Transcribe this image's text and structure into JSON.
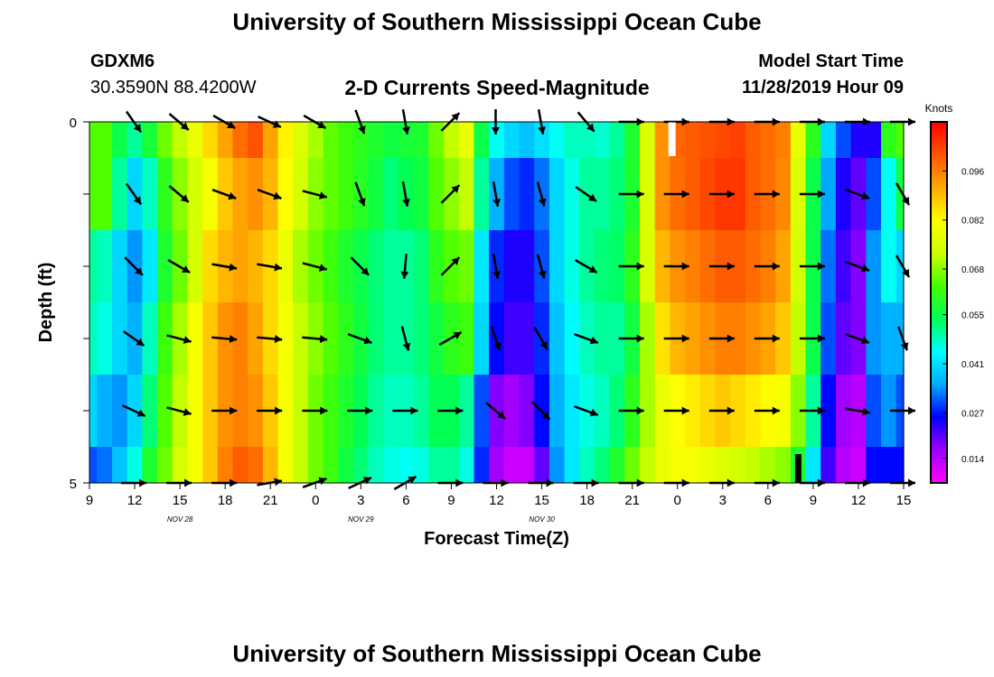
{
  "header": {
    "title": "University of Southern Mississippi Ocean Cube",
    "station": "GDXM6",
    "location": "30.3590N 88.4200W",
    "plot_title": "2-D Currents Speed-Magnitude",
    "model_label": "Model Start Time",
    "model_time": "11/28/2019 Hour 09"
  },
  "footer": {
    "title": "University of Southern Mississippi Ocean Cube"
  },
  "chart_data": {
    "type": "heatmap",
    "title": "2-D Currents Speed-Magnitude",
    "xlabel": "Forecast Time(Z)",
    "ylabel": "Depth (ft)",
    "x_tick_labels": [
      "9",
      "12",
      "15",
      "18",
      "21",
      "0",
      "3",
      "6",
      "9",
      "12",
      "15",
      "18",
      "21",
      "0",
      "3",
      "6",
      "9",
      "12",
      "15"
    ],
    "x_date_labels": [
      {
        "label": "NOV 28",
        "after_tick": 4
      },
      {
        "label": "NOV 29",
        "after_tick": 12
      },
      {
        "label": "NOV 30",
        "after_tick": 20
      }
    ],
    "x_hours_range": [
      0,
      54
    ],
    "y_tick_labels": [
      "0",
      "5"
    ],
    "ylim": [
      0,
      5
    ],
    "y_minor_ticks": 6,
    "colorbar": {
      "title": "Knots",
      "tick_labels": [
        "0.096",
        "0.082",
        "0.068",
        "0.055",
        "0.041",
        "0.027",
        "0.014"
      ],
      "tick_values": [
        0.096,
        0.082,
        0.068,
        0.055,
        0.041,
        0.027,
        0.014
      ],
      "range": [
        0.007,
        0.11
      ],
      "colors": [
        "#ff00ff",
        "#a000ff",
        "#0000ff",
        "#00aaff",
        "#00ffff",
        "#00ff55",
        "#44ff00",
        "#ccff00",
        "#ffff00",
        "#ffaa00",
        "#ff5500",
        "#ff0000"
      ]
    },
    "grid": false,
    "row_boundaries_ft": [
      0,
      0.5,
      1.5,
      2.5,
      3.5,
      4.5,
      5.0
    ],
    "hours": [
      0,
      1,
      2,
      3,
      4,
      5,
      6,
      7,
      8,
      9,
      10,
      11,
      12,
      13,
      14,
      15,
      16,
      17,
      18,
      19,
      20,
      21,
      22,
      23,
      24,
      25,
      26,
      27,
      28,
      29,
      30,
      31,
      32,
      33,
      34,
      35,
      36,
      37,
      38,
      39,
      40,
      41,
      42,
      43,
      44,
      45,
      46,
      47,
      48,
      49,
      50,
      51,
      52,
      53,
      54
    ],
    "speed_by_row": [
      [
        0.064,
        0.064,
        0.055,
        0.05,
        0.057,
        0.066,
        0.072,
        0.078,
        0.086,
        0.092,
        0.098,
        0.101,
        0.092,
        0.083,
        0.075,
        0.07,
        0.065,
        0.062,
        0.06,
        0.058,
        0.056,
        0.057,
        0.058,
        0.066,
        0.072,
        0.078,
        0.055,
        0.045,
        0.04,
        0.038,
        0.041,
        0.045,
        0.048,
        0.048,
        0.047,
        0.05,
        0.058,
        0.075,
        0.094,
        0.099,
        0.1,
        0.101,
        0.102,
        0.103,
        0.1,
        0.098,
        0.096,
        0.078,
        0.06,
        0.04,
        0.03,
        0.024,
        0.024,
        0.06,
        0.064
      ],
      [
        0.064,
        0.064,
        0.05,
        0.04,
        0.048,
        0.06,
        0.068,
        0.074,
        0.08,
        0.088,
        0.092,
        0.094,
        0.09,
        0.082,
        0.074,
        0.068,
        0.065,
        0.062,
        0.059,
        0.056,
        0.052,
        0.054,
        0.056,
        0.064,
        0.068,
        0.072,
        0.05,
        0.036,
        0.03,
        0.028,
        0.032,
        0.04,
        0.046,
        0.05,
        0.05,
        0.052,
        0.058,
        0.075,
        0.094,
        0.098,
        0.1,
        0.102,
        0.104,
        0.104,
        0.1,
        0.098,
        0.095,
        0.075,
        0.055,
        0.035,
        0.024,
        0.02,
        0.03,
        0.045,
        0.056
      ],
      [
        0.05,
        0.048,
        0.04,
        0.034,
        0.042,
        0.058,
        0.066,
        0.074,
        0.086,
        0.09,
        0.092,
        0.09,
        0.086,
        0.078,
        0.07,
        0.066,
        0.062,
        0.058,
        0.055,
        0.052,
        0.05,
        0.05,
        0.052,
        0.06,
        0.064,
        0.066,
        0.042,
        0.028,
        0.024,
        0.024,
        0.03,
        0.04,
        0.046,
        0.05,
        0.052,
        0.053,
        0.06,
        0.075,
        0.09,
        0.094,
        0.096,
        0.098,
        0.1,
        0.1,
        0.098,
        0.096,
        0.092,
        0.074,
        0.055,
        0.032,
        0.022,
        0.018,
        0.034,
        0.045,
        0.04
      ],
      [
        0.048,
        0.046,
        0.04,
        0.036,
        0.048,
        0.062,
        0.07,
        0.08,
        0.088,
        0.094,
        0.096,
        0.092,
        0.086,
        0.08,
        0.072,
        0.068,
        0.064,
        0.06,
        0.056,
        0.052,
        0.05,
        0.05,
        0.052,
        0.056,
        0.06,
        0.062,
        0.04,
        0.026,
        0.022,
        0.022,
        0.028,
        0.038,
        0.044,
        0.048,
        0.05,
        0.05,
        0.056,
        0.07,
        0.085,
        0.09,
        0.092,
        0.094,
        0.096,
        0.096,
        0.094,
        0.092,
        0.088,
        0.072,
        0.055,
        0.03,
        0.02,
        0.018,
        0.034,
        0.036,
        0.036
      ],
      [
        0.04,
        0.036,
        0.034,
        0.04,
        0.052,
        0.064,
        0.072,
        0.08,
        0.088,
        0.094,
        0.096,
        0.094,
        0.088,
        0.08,
        0.072,
        0.066,
        0.062,
        0.058,
        0.054,
        0.05,
        0.048,
        0.048,
        0.05,
        0.054,
        0.054,
        0.05,
        0.03,
        0.018,
        0.016,
        0.018,
        0.026,
        0.036,
        0.042,
        0.046,
        0.048,
        0.052,
        0.06,
        0.07,
        0.078,
        0.082,
        0.084,
        0.086,
        0.088,
        0.086,
        0.084,
        0.082,
        0.08,
        0.068,
        0.05,
        0.026,
        0.016,
        0.014,
        0.03,
        0.034,
        0.03
      ],
      [
        0.03,
        0.032,
        0.038,
        0.046,
        0.058,
        0.066,
        0.074,
        0.08,
        0.088,
        0.096,
        0.1,
        0.098,
        0.09,
        0.08,
        0.072,
        0.066,
        0.062,
        0.056,
        0.052,
        0.048,
        0.046,
        0.045,
        0.046,
        0.05,
        0.05,
        0.046,
        0.028,
        0.016,
        0.012,
        0.012,
        0.02,
        0.034,
        0.042,
        0.048,
        0.052,
        0.058,
        0.066,
        0.072,
        0.078,
        0.08,
        0.08,
        0.078,
        0.076,
        0.074,
        0.072,
        0.07,
        0.068,
        0.058,
        0.042,
        0.022,
        0.014,
        0.012,
        0.026,
        0.026,
        0.026
      ]
    ],
    "vectors": {
      "arrow_rows_ft": [
        0,
        1,
        2,
        3,
        4,
        5
      ],
      "arrow_hours": [
        3,
        6,
        9,
        12,
        15,
        18,
        21,
        24,
        27,
        30,
        33,
        36,
        39,
        42,
        45,
        48,
        51,
        54
      ],
      "angles_deg_by_row": [
        [
          55,
          40,
          30,
          25,
          30,
          70,
          80,
          -45,
          90,
          80,
          50,
          0,
          0,
          0,
          0,
          0,
          0,
          0
        ],
        [
          55,
          40,
          20,
          20,
          15,
          70,
          80,
          -45,
          80,
          75,
          35,
          0,
          0,
          0,
          0,
          0,
          20,
          60
        ],
        [
          45,
          30,
          10,
          10,
          15,
          45,
          95,
          -45,
          80,
          75,
          30,
          0,
          0,
          0,
          0,
          0,
          20,
          60
        ],
        [
          35,
          15,
          5,
          5,
          5,
          20,
          75,
          -30,
          70,
          60,
          20,
          0,
          0,
          0,
          0,
          0,
          20,
          70
        ],
        [
          25,
          15,
          0,
          0,
          0,
          0,
          0,
          0,
          40,
          45,
          20,
          0,
          0,
          0,
          0,
          0,
          10,
          0
        ],
        [
          0,
          0,
          0,
          -10,
          -20,
          -25,
          -30,
          0,
          0,
          0,
          0,
          0,
          0,
          0,
          0,
          0,
          0,
          0
        ]
      ]
    }
  }
}
